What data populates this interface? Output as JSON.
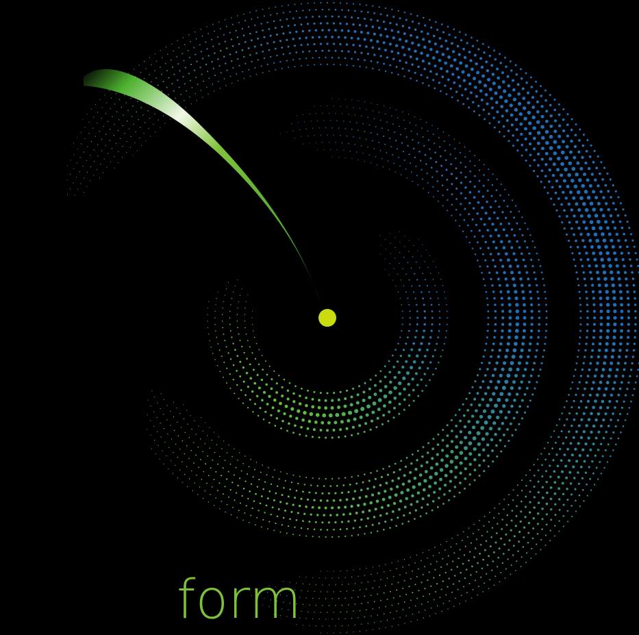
{
  "caption": {
    "text": "form"
  },
  "palette": {
    "background": "#000000",
    "caption_color": "#7fc23a",
    "ring_blue": "#1f6fb8",
    "ring_green": "#5cbf3a",
    "comet_green": "#4db02e",
    "comet_highlight": "#f2f8e6",
    "center_dot": "#c9dc10"
  },
  "graphic": {
    "ring_count": 3,
    "style": "dotted concentric rings with comet-shaped swoosh ending at a center dot",
    "icons": [
      "concentric-rings-graphic",
      "comet-swoosh",
      "center-dot"
    ]
  }
}
